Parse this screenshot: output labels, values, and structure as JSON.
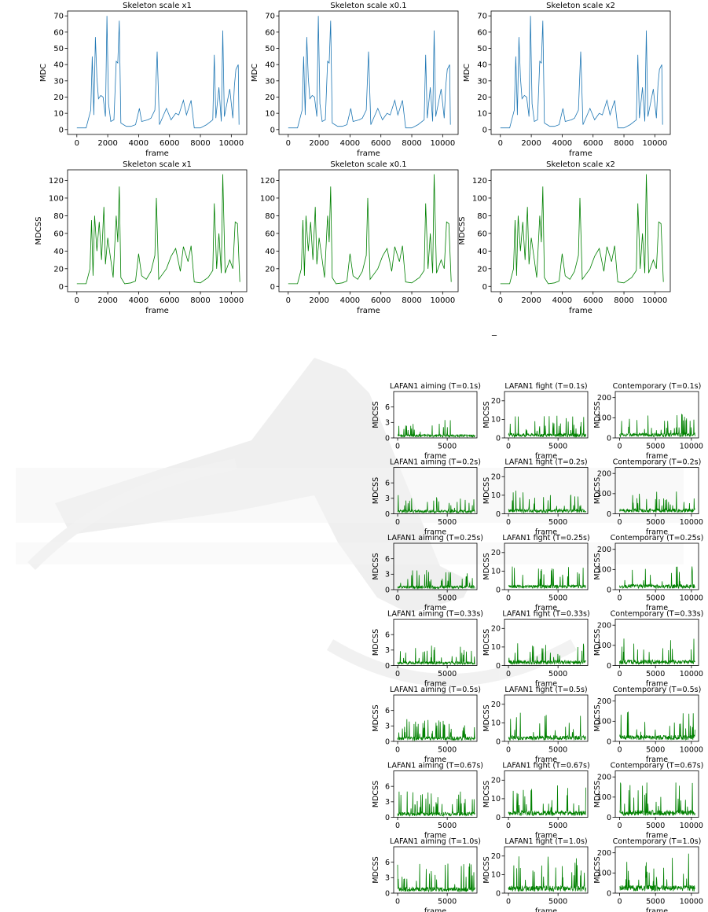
{
  "footnote_mark": "_",
  "chart_data": {
    "type": "line",
    "top_panels": [
      {
        "title": "Skeleton scale x1",
        "rows": [
          {
            "ylabel": "MDC",
            "xlabel": "frame",
            "xlim": [
              -600,
              11000
            ],
            "ylim": [
              -3,
              73
            ],
            "yticks": [
              0,
              10,
              20,
              30,
              40,
              50,
              60,
              70
            ],
            "xticks": [
              0,
              2000,
              4000,
              6000,
              8000,
              10000
            ],
            "color": "#1f77b4",
            "series": {
              "points": [
                [
                  0,
                  1
                ],
                [
                  600,
                  1
                ],
                [
                  900,
                  12
                ],
                [
                  1000,
                  45
                ],
                [
                  1100,
                  9
                ],
                [
                  1200,
                  57
                ],
                [
                  1300,
                  32
                ],
                [
                  1400,
                  19
                ],
                [
                  1550,
                  21
                ],
                [
                  1700,
                  20
                ],
                [
                  1850,
                  8
                ],
                [
                  1950,
                  70
                ],
                [
                  2050,
                  16
                ],
                [
                  2200,
                  5
                ],
                [
                  2400,
                  6
                ],
                [
                  2550,
                  42
                ],
                [
                  2650,
                  41
                ],
                [
                  2750,
                  67
                ],
                [
                  2850,
                  4
                ],
                [
                  3200,
                  2
                ],
                [
                  3500,
                  2
                ],
                [
                  3800,
                  3
                ],
                [
                  4050,
                  13
                ],
                [
                  4200,
                  5
                ],
                [
                  4600,
                  6
                ],
                [
                  4800,
                  7
                ],
                [
                  5050,
                  12
                ],
                [
                  5200,
                  48
                ],
                [
                  5350,
                  3
                ],
                [
                  5800,
                  13
                ],
                [
                  6100,
                  6
                ],
                [
                  6400,
                  10
                ],
                [
                  6600,
                  9
                ],
                [
                  6900,
                  18
                ],
                [
                  7100,
                  9
                ],
                [
                  7400,
                  18
                ],
                [
                  7600,
                  1
                ],
                [
                  8000,
                  1
                ],
                [
                  8400,
                  3
                ],
                [
                  8800,
                  6
                ],
                [
                  8900,
                  46
                ],
                [
                  9000,
                  7
                ],
                [
                  9200,
                  26
                ],
                [
                  9350,
                  5
                ],
                [
                  9450,
                  61
                ],
                [
                  9550,
                  8
                ],
                [
                  9900,
                  25
                ],
                [
                  10100,
                  7
                ],
                [
                  10200,
                  27
                ],
                [
                  10300,
                  37
                ],
                [
                  10450,
                  40
                ],
                [
                  10500,
                  3
                ]
              ]
            }
          },
          {
            "ylabel": "MDCSS",
            "xlabel": "frame",
            "xlim": [
              -600,
              11000
            ],
            "ylim": [
              -6,
              132
            ],
            "yticks": [
              0,
              20,
              40,
              60,
              80,
              100,
              120
            ],
            "xticks": [
              0,
              2000,
              4000,
              6000,
              8000,
              10000
            ],
            "color": "#008000",
            "series": {
              "points": [
                [
                  0,
                  3
                ],
                [
                  600,
                  3
                ],
                [
                  850,
                  20
                ],
                [
                  950,
                  75
                ],
                [
                  1050,
                  12
                ],
                [
                  1150,
                  80
                ],
                [
                  1300,
                  40
                ],
                [
                  1450,
                  73
                ],
                [
                  1600,
                  30
                ],
                [
                  1750,
                  90
                ],
                [
                  1850,
                  25
                ],
                [
                  2000,
                  55
                ],
                [
                  2200,
                  30
                ],
                [
                  2350,
                  10
                ],
                [
                  2550,
                  80
                ],
                [
                  2650,
                  50
                ],
                [
                  2750,
                  113
                ],
                [
                  2850,
                  10
                ],
                [
                  3100,
                  3
                ],
                [
                  3500,
                  4
                ],
                [
                  3800,
                  6
                ],
                [
                  4000,
                  37
                ],
                [
                  4200,
                  12
                ],
                [
                  4500,
                  8
                ],
                [
                  4800,
                  17
                ],
                [
                  5050,
                  35
                ],
                [
                  5150,
                  100
                ],
                [
                  5300,
                  8
                ],
                [
                  5800,
                  20
                ],
                [
                  6100,
                  34
                ],
                [
                  6400,
                  43
                ],
                [
                  6700,
                  17
                ],
                [
                  6900,
                  45
                ],
                [
                  7200,
                  28
                ],
                [
                  7400,
                  46
                ],
                [
                  7600,
                  5
                ],
                [
                  8000,
                  4
                ],
                [
                  8500,
                  10
                ],
                [
                  8800,
                  18
                ],
                [
                  8900,
                  94
                ],
                [
                  9050,
                  20
                ],
                [
                  9200,
                  60
                ],
                [
                  9350,
                  15
                ],
                [
                  9450,
                  127
                ],
                [
                  9600,
                  15
                ],
                [
                  9900,
                  30
                ],
                [
                  10100,
                  20
                ],
                [
                  10250,
                  73
                ],
                [
                  10400,
                  71
                ],
                [
                  10550,
                  5
                ]
              ]
            }
          }
        ]
      },
      {
        "title": "Skeleton scale x0.1",
        "rows": [
          {
            "ylabel": "MDC",
            "xlabel": "frame",
            "xlim": [
              -600,
              11000
            ],
            "ylim": [
              -3,
              73
            ],
            "yticks": [
              0,
              10,
              20,
              30,
              40,
              50,
              60,
              70
            ],
            "xticks": [
              0,
              2000,
              4000,
              6000,
              8000,
              10000
            ],
            "color": "#1f77b4",
            "same_as": "Skeleton scale x1"
          },
          {
            "ylabel": "",
            "xlabel": "frame",
            "xlim": [
              -600,
              11000
            ],
            "ylim": [
              -6,
              132
            ],
            "yticks": [
              0,
              20,
              40,
              60,
              80,
              100,
              120
            ],
            "xticks": [
              0,
              2000,
              4000,
              6000,
              8000,
              10000
            ],
            "color": "#008000",
            "same_as": "Skeleton scale x1"
          }
        ]
      },
      {
        "title": "Skeleton scale x2",
        "rows": [
          {
            "ylabel": "MDC",
            "xlabel": "frame",
            "xlim": [
              -600,
              11000
            ],
            "ylim": [
              -3,
              73
            ],
            "yticks": [
              0,
              10,
              20,
              30,
              40,
              50,
              60,
              70
            ],
            "xticks": [
              0,
              2000,
              4000,
              6000,
              8000,
              10000
            ],
            "color": "#1f77b4",
            "same_as": "Skeleton scale x1"
          },
          {
            "ylabel": "MDCSS",
            "xlabel": "frame",
            "xlim": [
              -600,
              11000
            ],
            "ylim": [
              -6,
              132
            ],
            "yticks": [
              0,
              20,
              40,
              60,
              80,
              100,
              120
            ],
            "xticks": [
              0,
              2000,
              4000,
              6000,
              8000,
              10000
            ],
            "color": "#008000",
            "same_as": "Skeleton scale x1"
          }
        ]
      }
    ],
    "grid_ylabel": "MDCSS",
    "grid_xlabel": "frame",
    "grid_columns": [
      {
        "name": "LAFAN1 aiming",
        "ylim": [
          0,
          9
        ],
        "yticks": [
          0,
          3,
          6
        ],
        "xlim": [
          -400,
          8000
        ],
        "xticks": [
          0,
          5000
        ],
        "n_frames": 7800,
        "base_peak": 3.5
      },
      {
        "name": "LAFAN1 fight",
        "ylim": [
          0,
          25
        ],
        "yticks": [
          0,
          10,
          20
        ],
        "xlim": [
          -400,
          8000
        ],
        "xticks": [
          0,
          5000
        ],
        "n_frames": 7800,
        "base_peak": 12
      },
      {
        "name": "Contemporary",
        "ylim": [
          0,
          230
        ],
        "yticks": [
          0,
          100,
          200
        ],
        "xlim": [
          -600,
          11000
        ],
        "xticks": [
          0,
          5000,
          10000
        ],
        "n_frames": 10500,
        "base_peak": 120
      }
    ],
    "grid_rows": [
      {
        "T": "0.1s",
        "titles": [
          "LAFAN1 aiming (T=0.1s)",
          "LAFAN1 fight (T=0.1s)",
          "Contemporary (T=0.1s)"
        ],
        "peak_scale": 1.0
      },
      {
        "T": "0.2s",
        "titles": [
          "LAFAN1 aiming (T=0.2s)",
          "LAFAN1 fight (T=0.2s)",
          "Contemporary (T=0.2s)"
        ],
        "peak_scale": 1.05
      },
      {
        "T": "0.25s",
        "titles": [
          "LAFAN1 aiming (T=0.25s)",
          "LAFAN1 fight (T=0.25s)",
          "Contemporary (T=0.25s)"
        ],
        "peak_scale": 1.1
      },
      {
        "T": "0.33s",
        "titles": [
          "LAFAN1 aiming (T=0.33s)",
          "LAFAN1 fight (T=0.33s)",
          "Contemporary (T=0.33s)"
        ],
        "peak_scale": 1.15
      },
      {
        "T": "0.5s",
        "titles": [
          "LAFAN1 aiming (T=0.5s)",
          "LAFAN1 fight (T=0.5s)",
          "Contemporary (T=0.5s)"
        ],
        "peak_scale": 1.3
      },
      {
        "T": "0.67s",
        "titles": [
          "LAFAN1 aiming (T=0.67s)",
          "LAFAN1 fight (T=0.67s)",
          "Contemporary (T=0.67s)"
        ],
        "peak_scale": 1.45
      },
      {
        "T": "1.0s",
        "titles": [
          "LAFAN1 aiming (T=1.0s)",
          "LAFAN1 fight (T=1.0s)",
          "Contemporary (T=1.0s)"
        ],
        "peak_scale": 1.65
      }
    ]
  }
}
